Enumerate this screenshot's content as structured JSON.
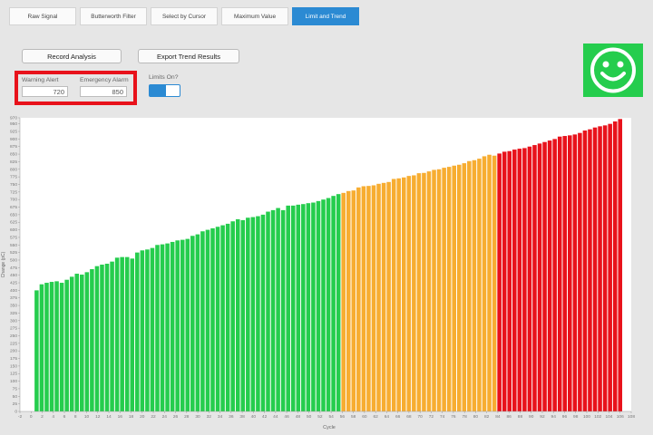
{
  "tabs": [
    {
      "label": "Raw Signal",
      "active": false
    },
    {
      "label": "Butterworth Filter",
      "active": false
    },
    {
      "label": "Select by Cursor",
      "active": false
    },
    {
      "label": "Maximum Value",
      "active": false
    },
    {
      "label": "Limit and Trend",
      "active": true
    }
  ],
  "actions": {
    "record_label": "Record Analysis",
    "export_label": "Export Trend Results"
  },
  "limits": {
    "warning_label": "Warning Alert",
    "warning_value": "720",
    "emergency_label": "Emergency Alarm",
    "emergency_value": "850",
    "toggle_label": "Limits On?",
    "limits_on": true
  },
  "status": {
    "icon": "smiley-face-icon",
    "color": "#25cd4d"
  },
  "colors": {
    "accent": "#2b8ad3",
    "ok": "#25cd4d",
    "warning": "#f7ad31",
    "alarm": "#e8121b"
  },
  "chart_data": {
    "type": "bar",
    "xlabel": "Cycle",
    "ylabel": "Change (pC)",
    "xlim": [
      -2,
      108
    ],
    "ylim": [
      0,
      970
    ],
    "x_ticks": [
      -2,
      0,
      2,
      4,
      6,
      8,
      10,
      12,
      14,
      16,
      18,
      20,
      22,
      24,
      26,
      28,
      30,
      32,
      34,
      36,
      38,
      40,
      42,
      44,
      46,
      48,
      50,
      52,
      54,
      56,
      58,
      60,
      62,
      64,
      66,
      68,
      70,
      72,
      74,
      76,
      78,
      80,
      82,
      84,
      86,
      88,
      90,
      92,
      94,
      96,
      98,
      100,
      102,
      104,
      106,
      108
    ],
    "y_ticks": [
      0,
      25,
      50,
      75,
      100,
      125,
      150,
      175,
      200,
      225,
      250,
      275,
      300,
      325,
      350,
      375,
      400,
      425,
      450,
      475,
      500,
      525,
      550,
      575,
      600,
      625,
      650,
      675,
      700,
      725,
      750,
      775,
      800,
      825,
      850,
      875,
      900,
      925,
      950,
      970
    ],
    "first_cycle": 1,
    "thresholds": {
      "warning": 720,
      "emergency": 850
    },
    "values": [
      400,
      420,
      425,
      428,
      430,
      425,
      435,
      445,
      455,
      452,
      460,
      470,
      480,
      485,
      488,
      495,
      508,
      510,
      510,
      505,
      525,
      532,
      535,
      540,
      550,
      552,
      555,
      560,
      565,
      567,
      570,
      580,
      585,
      595,
      600,
      605,
      610,
      615,
      620,
      628,
      635,
      632,
      640,
      642,
      645,
      650,
      660,
      665,
      672,
      665,
      680,
      680,
      683,
      685,
      688,
      690,
      695,
      700,
      705,
      712,
      718,
      722,
      728,
      730,
      740,
      744,
      745,
      747,
      752,
      755,
      758,
      768,
      770,
      773,
      778,
      780,
      787,
      788,
      793,
      798,
      800,
      805,
      808,
      812,
      815,
      820,
      827,
      830,
      835,
      843,
      848,
      845,
      852,
      858,
      860,
      865,
      868,
      870,
      875,
      880,
      885,
      890,
      895,
      900,
      908,
      910,
      912,
      915,
      920,
      928,
      932,
      938,
      942,
      945,
      950,
      958,
      966
    ]
  }
}
